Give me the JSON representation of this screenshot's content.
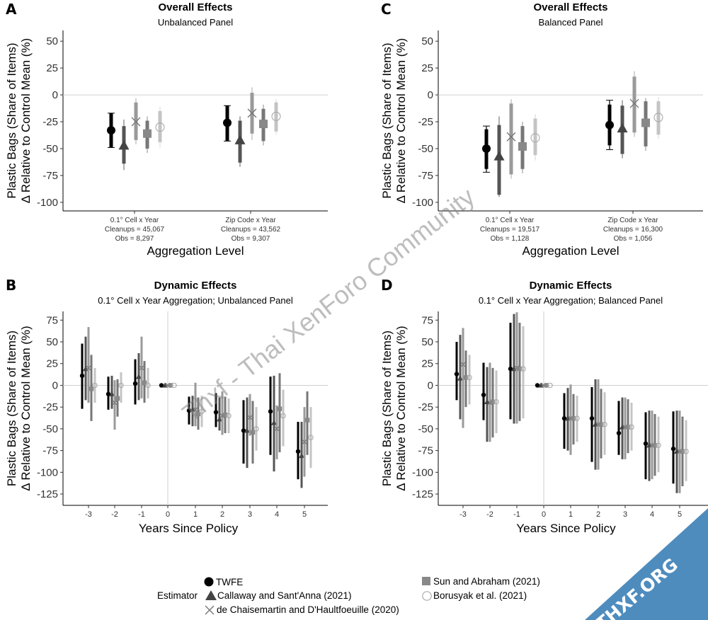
{
  "legend": {
    "title": "Estimator",
    "items": [
      {
        "name": "TWFE",
        "marker": "circle",
        "color": "#000000"
      },
      {
        "name": "Callaway and Sant'Anna  (2021)",
        "marker": "triangle",
        "color": "#444444"
      },
      {
        "name": "de Chaisemartin and D'Haultfoeuille (2020)",
        "marker": "x",
        "color": "#777777"
      },
      {
        "name": "Sun and Abraham (2021)",
        "marker": "square",
        "color": "#888888"
      },
      {
        "name": "Borusyak et al. (2021)",
        "marker": "open-circle",
        "color": "#aaaaaa"
      }
    ]
  },
  "watermark": {
    "text": "Thxf - Thai XenForo Community",
    "badge": "THXF.ORG"
  },
  "chart_data": [
    {
      "panel": "A",
      "type": "scatter",
      "title": "Overall Effects",
      "subtitle": "Unbalanced Panel",
      "xlabel": "Aggregation Level",
      "ylabel": [
        "Plastic Bags (Share of Items)",
        "Δ Relative to Control Mean (%)"
      ],
      "ylim": [
        -108,
        60
      ],
      "yticks": [
        50,
        25,
        0,
        -25,
        -50,
        -75,
        -100
      ],
      "grid": false,
      "zero_line": true,
      "categories": [
        {
          "lines": [
            "0.1° Cell x Year",
            "Cleanups = 45,067",
            "Obs = 8,297"
          ]
        },
        {
          "lines": [
            "Zip Code x Year",
            "Cleanups = 43,562",
            "Obs = 9,307"
          ]
        }
      ],
      "series": [
        {
          "name": "TWFE",
          "values": [
            -33,
            -26
          ],
          "lower": [
            -49,
            -43
          ],
          "upper": [
            -17,
            -10
          ],
          "lower95": [
            -49,
            -43
          ],
          "upper95": [
            -17,
            -10
          ]
        },
        {
          "name": "Callaway and Sant'Anna  (2021)",
          "values": [
            -47,
            -42
          ],
          "lower": [
            -64,
            -63
          ],
          "upper": [
            -29,
            -24
          ],
          "lower95": [
            -70,
            -67
          ],
          "upper95": [
            -23,
            -20
          ]
        },
        {
          "name": "de Chaisemartin and D'Haultfoeuille (2020)",
          "values": [
            -25,
            -17
          ],
          "lower": [
            -42,
            -36
          ],
          "upper": [
            -7,
            2
          ],
          "lower95": [
            -46,
            -42
          ],
          "upper95": [
            -3,
            7
          ]
        },
        {
          "name": "Sun and Abraham (2021)",
          "values": [
            -36,
            -27
          ],
          "lower": [
            -50,
            -43
          ],
          "upper": [
            -24,
            -13
          ],
          "lower95": [
            -54,
            -47
          ],
          "upper95": [
            -20,
            -9
          ]
        },
        {
          "name": "Borusyak et al. (2021)",
          "values": [
            -30,
            -20
          ],
          "lower": [
            -44,
            -34
          ],
          "upper": [
            -15,
            -7
          ],
          "lower95": [
            -49,
            -37
          ],
          "upper95": [
            -11,
            -4
          ]
        }
      ]
    },
    {
      "panel": "C",
      "type": "scatter",
      "title": "Overall Effects",
      "subtitle": "Balanced Panel",
      "xlabel": "Aggregation Level",
      "ylabel": [
        "Plastic Bags (Share of Items)",
        "Δ Relative to Control Mean (%)"
      ],
      "ylim": [
        -108,
        60
      ],
      "yticks": [
        50,
        25,
        0,
        -25,
        -50,
        -75,
        -100
      ],
      "grid": false,
      "zero_line": true,
      "categories": [
        {
          "lines": [
            "0.1° Cell x Year",
            "Cleanups = 19,517",
            "Obs = 1,128"
          ]
        },
        {
          "lines": [
            "Zip Code x Year",
            "Cleanups = 16,300",
            "Obs = 1,056"
          ]
        }
      ],
      "series": [
        {
          "name": "TWFE",
          "values": [
            -50,
            -28
          ],
          "lower": [
            -69,
            -47
          ],
          "upper": [
            -32,
            -9
          ],
          "lower95": [
            -72,
            -51
          ],
          "upper95": [
            -29,
            -5
          ]
        },
        {
          "name": "Callaway and Sant'Anna  (2021)",
          "values": [
            -57,
            -31
          ],
          "lower": [
            -93,
            -55
          ],
          "upper": [
            -28,
            -10
          ],
          "lower95": [
            -95,
            -59
          ],
          "upper95": [
            -20,
            -5
          ]
        },
        {
          "name": "de Chaisemartin and D'Haultfoeuille (2020)",
          "values": [
            -39,
            -8
          ],
          "lower": [
            -74,
            -35
          ],
          "upper": [
            -8,
            17
          ],
          "lower95": [
            -78,
            -39
          ],
          "upper95": [
            -4,
            22
          ]
        },
        {
          "name": "Sun and Abraham (2021)",
          "values": [
            -48,
            -26
          ],
          "lower": [
            -69,
            -48
          ],
          "upper": [
            -29,
            -6
          ],
          "lower95": [
            -73,
            -52
          ],
          "upper95": [
            -25,
            -3
          ]
        },
        {
          "name": "Borusyak et al. (2021)",
          "values": [
            -40,
            -21
          ],
          "lower": [
            -56,
            -37
          ],
          "upper": [
            -22,
            -6
          ],
          "lower95": [
            -61,
            -41
          ],
          "upper95": [
            -18,
            -2
          ]
        }
      ]
    },
    {
      "panel": "B",
      "type": "scatter",
      "title": "Dynamic Effects",
      "subtitle": "0.1° Cell x Year Aggregation; Unbalanced Panel",
      "xlabel": "Years Since Policy",
      "ylabel": [
        "Plastic Bags (Share of Items)",
        "Δ Relative to Control Mean (%)"
      ],
      "ylim": [
        -138,
        85
      ],
      "yticks": [
        75,
        50,
        25,
        0,
        -25,
        -50,
        -75,
        -100,
        -125
      ],
      "grid": false,
      "zero_line": true,
      "vline_at": 0,
      "categories": [
        "-3",
        "-2",
        "-1",
        "0",
        "1",
        "2",
        "3",
        "4",
        "5"
      ],
      "series": [
        {
          "name": "TWFE",
          "values": [
            11,
            -10,
            2,
            0,
            -29,
            -31,
            -52,
            -30,
            -76
          ],
          "lower": [
            -27,
            -28,
            -22,
            0,
            -45,
            -48,
            -90,
            -80,
            -108
          ],
          "upper": [
            48,
            10,
            30,
            0,
            -13,
            -9,
            -17,
            10,
            -42
          ]
        },
        {
          "name": "Callaway and Sant'Anna  (2021)",
          "values": [
            19,
            -10,
            10,
            0,
            -28,
            -39,
            -52,
            -43,
            -81
          ],
          "lower": [
            -17,
            -27,
            -17,
            0,
            -47,
            -52,
            -95,
            -99,
            -118
          ],
          "upper": [
            56,
            11,
            37,
            0,
            -12,
            -14,
            -14,
            11,
            -42
          ]
        },
        {
          "name": "de Chaisemartin and D'Haultfoeuille (2020)",
          "values": [
            20,
            -20,
            20,
            0,
            -28,
            -35,
            -37,
            -50,
            -65
          ],
          "lower": [
            -20,
            -51,
            -15,
            0,
            -47,
            -57,
            -58,
            -85,
            -105
          ],
          "upper": [
            67,
            6,
            56,
            0,
            3,
            -7,
            -10,
            -23,
            -25
          ]
        },
        {
          "name": "Sun and Abraham (2021)",
          "values": [
            -4,
            -15,
            3,
            0,
            -33,
            -34,
            -54,
            -27,
            -40
          ],
          "lower": [
            -41,
            -36,
            -20,
            0,
            -51,
            -55,
            -90,
            -77,
            -80
          ],
          "upper": [
            35,
            7,
            28,
            0,
            -14,
            -13,
            -18,
            14,
            -7
          ]
        },
        {
          "name": "Borusyak et al. (2021)",
          "values": [
            0,
            0,
            0,
            0,
            -30,
            -35,
            -50,
            -35,
            -60
          ],
          "lower": [
            -20,
            -20,
            -15,
            0,
            -48,
            -55,
            -75,
            -70,
            -95
          ],
          "upper": [
            20,
            15,
            20,
            0,
            -12,
            -15,
            -25,
            -5,
            -25
          ]
        }
      ]
    },
    {
      "panel": "D",
      "type": "scatter",
      "title": "Dynamic Effects",
      "subtitle": "0.1° Cell x Year Aggregation; Balanced Panel",
      "xlabel": "Years Since Policy",
      "ylabel": [
        "Plastic Bags (Share of Items)",
        "Δ Relative to Control Mean (%)"
      ],
      "ylim": [
        -138,
        85
      ],
      "yticks": [
        75,
        50,
        25,
        0,
        -25,
        -50,
        -75,
        -100,
        -125
      ],
      "grid": false,
      "zero_line": true,
      "vline_at": 0,
      "categories": [
        "-3",
        "-2",
        "-1",
        "0",
        "1",
        "2",
        "3",
        "4",
        "5"
      ],
      "series": [
        {
          "name": "TWFE",
          "values": [
            13,
            -11,
            19,
            0,
            -38,
            -38,
            -55,
            -67,
            -73
          ],
          "lower": [
            -17,
            -40,
            -39,
            0,
            -73,
            -88,
            -80,
            -108,
            -113
          ],
          "upper": [
            50,
            26,
            72,
            0,
            -9,
            -2,
            -18,
            -31,
            -30
          ]
        },
        {
          "name": "Callaway and Sant'Anna  (2021)",
          "values": [
            8,
            -19,
            19,
            0,
            -38,
            -45,
            -48,
            -69,
            -76
          ],
          "lower": [
            -39,
            -65,
            -44,
            0,
            -75,
            -97,
            -85,
            -110,
            -124
          ],
          "upper": [
            58,
            21,
            82,
            0,
            -3,
            7,
            -14,
            -29,
            -29
          ]
        },
        {
          "name": "de Chaisemartin and D'Haultfoeuille (2020)",
          "values": [
            24,
            -20,
            20,
            0,
            -38,
            -45,
            -48,
            -69,
            -76
          ],
          "lower": [
            -49,
            -65,
            -44,
            0,
            -80,
            -97,
            -85,
            -108,
            -124
          ],
          "upper": [
            66,
            26,
            84,
            0,
            1,
            7,
            -14,
            -29,
            -29
          ]
        },
        {
          "name": "Sun and Abraham (2021)",
          "values": [
            9,
            -19,
            19,
            0,
            -38,
            -45,
            -48,
            -69,
            -76
          ],
          "lower": [
            -25,
            -60,
            -41,
            0,
            -68,
            -84,
            -78,
            -104,
            -116
          ],
          "upper": [
            40,
            20,
            72,
            0,
            -10,
            -4,
            -16,
            -33,
            -36
          ]
        },
        {
          "name": "Borusyak et al. (2021)",
          "values": [
            9,
            -19,
            19,
            0,
            -38,
            -45,
            -48,
            -69,
            -76
          ],
          "lower": [
            -22,
            -55,
            -38,
            0,
            -65,
            -80,
            -75,
            -100,
            -110
          ],
          "upper": [
            35,
            17,
            68,
            0,
            -12,
            -8,
            -20,
            -36,
            -40
          ]
        }
      ]
    }
  ]
}
